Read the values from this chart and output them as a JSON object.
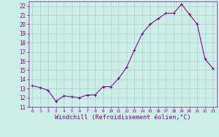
{
  "x": [
    0,
    1,
    2,
    3,
    4,
    5,
    6,
    7,
    8,
    9,
    10,
    11,
    12,
    13,
    14,
    15,
    16,
    17,
    18,
    19,
    20,
    21,
    22,
    23
  ],
  "y": [
    13.3,
    13.1,
    12.8,
    11.6,
    12.2,
    12.1,
    12.0,
    12.3,
    12.3,
    13.2,
    13.2,
    14.1,
    15.3,
    17.2,
    19.0,
    20.0,
    20.6,
    21.2,
    21.2,
    22.2,
    21.1,
    20.0,
    16.2,
    15.2
  ],
  "line_color": "#800080",
  "marker": "+",
  "marker_color": "#800080",
  "bg_color": "#cceee8",
  "grid_color": "#aacccc",
  "tick_color": "#800080",
  "xlabel": "Windchill (Refroidissement éolien,°C)",
  "xlabel_color": "#800080",
  "ylim": [
    11,
    22.5
  ],
  "yticks": [
    11,
    12,
    13,
    14,
    15,
    16,
    17,
    18,
    19,
    20,
    21,
    22
  ],
  "xticks": [
    0,
    1,
    2,
    3,
    4,
    5,
    6,
    7,
    8,
    9,
    10,
    11,
    12,
    13,
    14,
    15,
    16,
    17,
    18,
    19,
    20,
    21,
    22,
    23
  ],
  "xtick_fontsize": 4.5,
  "ytick_fontsize": 5.5,
  "xlabel_fontsize": 6.5
}
